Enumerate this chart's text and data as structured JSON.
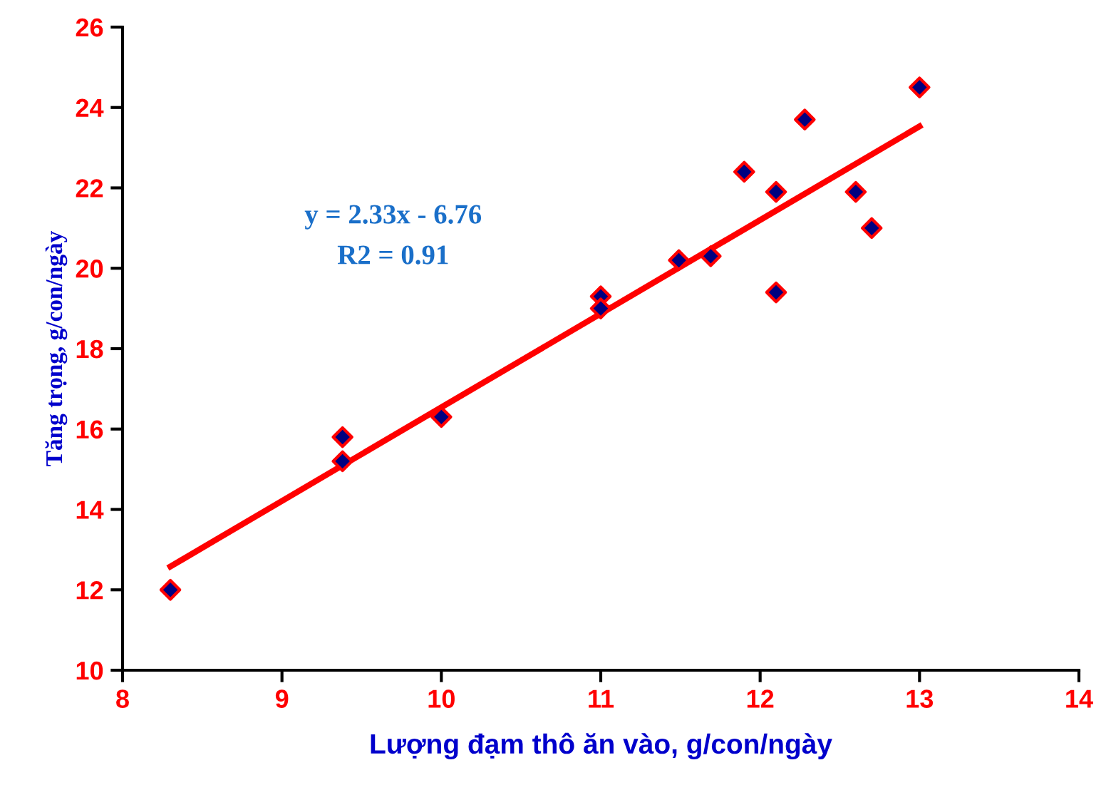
{
  "chart_data": {
    "type": "scatter",
    "xlabel": "Lượng đạm thô ăn vào, g/con/ngày",
    "ylabel": "Tăng trọng, g/con/ngày",
    "series": [
      {
        "color": "#000080",
        "marker": "diamond",
        "x": [
          8.3,
          9.38,
          9.38,
          10.0,
          11.0,
          11.0,
          11.49,
          11.69,
          11.9,
          12.1,
          12.1,
          12.28,
          12.6,
          12.7,
          13.0
        ],
        "values": [
          12.0,
          15.8,
          15.2,
          16.3,
          19.3,
          19.0,
          20.2,
          20.3,
          22.4,
          21.9,
          19.4,
          23.7,
          21.9,
          21.0,
          24.5
        ]
      },
      {
        "type": "line",
        "color": "#ff0000",
        "marker": "none",
        "line_style": "solid",
        "x": [
          8.3,
          13.0
        ],
        "values": [
          12.58,
          23.53
        ]
      }
    ],
    "annotations": [
      "y = 2.33x - 6.76",
      "R2 = 0.91"
    ],
    "xlim": [
      8,
      14
    ],
    "xticks": [
      8,
      9,
      10,
      11,
      12,
      13,
      14
    ],
    "ylim": [
      10,
      26
    ],
    "yticks": [
      10,
      12,
      14,
      16,
      18,
      20,
      22,
      24,
      26
    ],
    "grid": false,
    "legend": false
  }
}
